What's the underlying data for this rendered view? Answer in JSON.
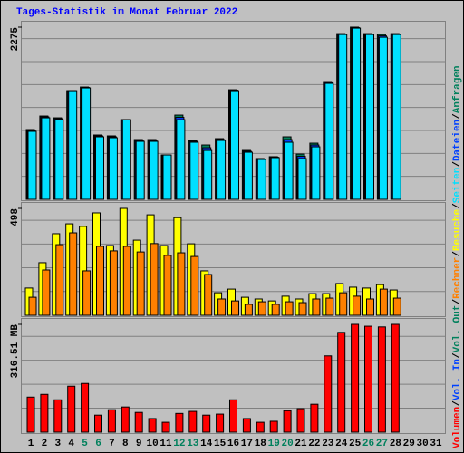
{
  "chart_data": [
    {
      "type": "bar",
      "title": "Tages-Statistik im Monat Februar 2022",
      "legend_separator": "/",
      "categories": [
        "1",
        "2",
        "3",
        "4",
        "5",
        "6",
        "7",
        "8",
        "9",
        "10",
        "11",
        "12",
        "13",
        "14",
        "15",
        "16",
        "17",
        "18",
        "19",
        "20",
        "21",
        "22",
        "23",
        "24",
        "25",
        "26",
        "27",
        "28",
        "29",
        "30",
        "31"
      ],
      "x_label_colors": [
        "#000000",
        "#000000",
        "#000000",
        "#000000",
        "#00805C",
        "#00805C",
        "#000000",
        "#000000",
        "#000000",
        "#000000",
        "#000000",
        "#00805C",
        "#00805C",
        "#000000",
        "#000000",
        "#000000",
        "#000000",
        "#000000",
        "#00805C",
        "#00805C",
        "#000000",
        "#000000",
        "#000000",
        "#000000",
        "#000000",
        "#00805C",
        "#00805C",
        "#000000",
        "#000000",
        "#000000",
        "#000000"
      ],
      "ylim": [
        0,
        2275
      ],
      "yticks": [
        2275
      ],
      "series": [
        {
          "name": "Anfragen",
          "color": "#00805C",
          "values": [
            922,
            1101,
            1077,
            1436,
            1484,
            850,
            838,
            1053,
            790,
            790,
            586,
            1113,
            778,
            718,
            802,
            1448,
            646,
            539,
            563,
            826,
            598,
            742,
            1556,
            2190,
            2275,
            2190,
            2178,
            2190,
            null,
            null,
            null
          ]
        },
        {
          "name": "Dateien",
          "color": "#0040FF",
          "values": [
            910,
            1089,
            1065,
            1436,
            1478,
            838,
            826,
            1053,
            778,
            778,
            586,
            1083,
            766,
            682,
            790,
            1442,
            634,
            533,
            557,
            790,
            568,
            718,
            1544,
            2184,
            2268,
            2184,
            2160,
            2184,
            null,
            null,
            null
          ]
        },
        {
          "name": "Seiten",
          "color": "#00E0FF",
          "values": [
            898,
            1077,
            1053,
            1436,
            1472,
            826,
            814,
            1053,
            766,
            766,
            586,
            1053,
            754,
            646,
            778,
            1436,
            622,
            527,
            551,
            754,
            539,
            694,
            1532,
            2178,
            2262,
            2178,
            2142,
            2178,
            null,
            null,
            null
          ]
        }
      ]
    },
    {
      "type": "bar",
      "ylim": [
        0,
        498
      ],
      "yticks": [
        498
      ],
      "series": [
        {
          "name": "Besuche",
          "color": "#FFFF00",
          "values": [
            127,
            245,
            380,
            426,
            414,
            477,
            325,
            498,
            350,
            468,
            325,
            455,
            333,
            207,
            105,
            122,
            84,
            76,
            67,
            89,
            76,
            101,
            101,
            148,
            131,
            127,
            143,
            118,
            null,
            null,
            null
          ]
        },
        {
          "name": "Rechner",
          "color": "#FF8000",
          "values": [
            84,
            211,
            329,
            384,
            207,
            321,
            300,
            321,
            295,
            334,
            279,
            291,
            274,
            190,
            76,
            67,
            51,
            63,
            51,
            63,
            59,
            76,
            80,
            105,
            89,
            76,
            122,
            80,
            null,
            null,
            null
          ]
        }
      ]
    },
    {
      "type": "bar",
      "ylim": [
        0,
        316.51
      ],
      "yticks": [
        {
          "value": 316.51,
          "label": "316.51 MB"
        }
      ],
      "series": [
        {
          "name": "Volumen",
          "color": "#FF0000",
          "values": [
            103,
            111,
            95,
            135,
            143,
            50,
            66,
            74,
            58,
            40,
            29,
            55,
            61,
            50,
            53,
            95,
            40,
            29,
            32,
            63,
            69,
            82,
            224,
            293,
            316.51,
            311,
            309,
            316.51,
            null,
            null,
            null
          ]
        }
      ],
      "legend_only": [
        {
          "name": "Vol. In",
          "color": "#0040FF"
        },
        {
          "name": "Vol. Out",
          "color": "#00805C"
        }
      ]
    }
  ]
}
